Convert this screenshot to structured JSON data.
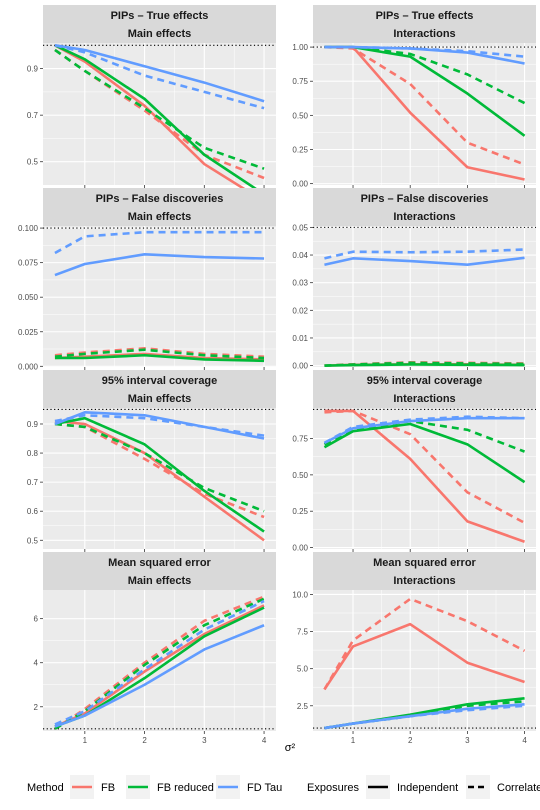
{
  "figure": {
    "xlabel": "σ²",
    "legend": {
      "method_title": "Method",
      "methods": [
        {
          "name": "FB",
          "color": "#F8766D"
        },
        {
          "name": "FB reduced",
          "color": "#00BA38"
        },
        {
          "name": "FD Tau",
          "color": "#619CFF"
        }
      ],
      "exposures_title": "Exposures",
      "exposures": [
        {
          "name": "Independent",
          "linetype": "solid"
        },
        {
          "name": "Correlated",
          "linetype": "dashed"
        }
      ]
    }
  },
  "chart_data": [
    {
      "type": "line",
      "title": "PIPs – True effects",
      "subtitle": "Main effects",
      "x": [
        0.5,
        1,
        2,
        3,
        4
      ],
      "xlim": [
        0.3,
        4.2
      ],
      "xticks": [
        1,
        2,
        3,
        4
      ],
      "ylim": [
        0.4,
        1.01
      ],
      "yticks": [
        0.5,
        0.7,
        0.9
      ],
      "ytick_labels": [
        "0.5",
        "0.7",
        "0.9"
      ],
      "hline": 1.0,
      "series": [
        {
          "method": "FB",
          "exposures": "Independent",
          "values": [
            1.0,
            0.93,
            0.74,
            0.49,
            0.33
          ]
        },
        {
          "method": "FB",
          "exposures": "Correlated",
          "values": [
            0.98,
            0.89,
            0.72,
            0.53,
            0.43
          ]
        },
        {
          "method": "FB reduced",
          "exposures": "Independent",
          "values": [
            1.0,
            0.94,
            0.77,
            0.53,
            0.36
          ]
        },
        {
          "method": "FB reduced",
          "exposures": "Correlated",
          "values": [
            0.98,
            0.89,
            0.73,
            0.56,
            0.47
          ]
        },
        {
          "method": "FD Tau",
          "exposures": "Independent",
          "values": [
            1.0,
            0.98,
            0.91,
            0.84,
            0.76
          ]
        },
        {
          "method": "FD Tau",
          "exposures": "Correlated",
          "values": [
            1.0,
            0.97,
            0.87,
            0.8,
            0.73
          ]
        }
      ]
    },
    {
      "type": "line",
      "title": "PIPs – True effects",
      "subtitle": "Interactions",
      "x": [
        0.5,
        1,
        2,
        3,
        4
      ],
      "xlim": [
        0.3,
        4.2
      ],
      "xticks": [
        1,
        2,
        3,
        4
      ],
      "ylim": [
        -0.01,
        1.03
      ],
      "yticks": [
        0.0,
        0.25,
        0.5,
        0.75,
        1.0
      ],
      "ytick_labels": [
        "0.00",
        "0.25",
        "0.50",
        "0.75",
        "1.00"
      ],
      "hline": 1.0,
      "series": [
        {
          "method": "FB",
          "exposures": "Independent",
          "values": [
            1.0,
            1.0,
            0.52,
            0.12,
            0.03
          ]
        },
        {
          "method": "FB",
          "exposures": "Correlated",
          "values": [
            1.0,
            0.99,
            0.73,
            0.3,
            0.14
          ]
        },
        {
          "method": "FB reduced",
          "exposures": "Independent",
          "values": [
            1.0,
            1.0,
            0.93,
            0.66,
            0.35
          ]
        },
        {
          "method": "FB reduced",
          "exposures": "Correlated",
          "values": [
            1.0,
            1.0,
            0.95,
            0.8,
            0.59
          ]
        },
        {
          "method": "FD Tau",
          "exposures": "Independent",
          "values": [
            1.0,
            1.0,
            0.99,
            0.96,
            0.88
          ]
        },
        {
          "method": "FD Tau",
          "exposures": "Correlated",
          "values": [
            1.0,
            1.0,
            0.99,
            0.97,
            0.93
          ]
        }
      ]
    },
    {
      "type": "line",
      "title": "PIPs – False discoveries",
      "subtitle": "Main effects",
      "x": [
        0.5,
        1,
        2,
        3,
        4
      ],
      "xlim": [
        0.3,
        4.2
      ],
      "xticks": [
        1,
        2,
        3,
        4
      ],
      "ylim": [
        -0.0005,
        0.1015
      ],
      "yticks": [
        0.0,
        0.025,
        0.05,
        0.075,
        0.1
      ],
      "ytick_labels": [
        "0.000",
        "0.025",
        "0.050",
        "0.075",
        "0.100"
      ],
      "hline": 0.1,
      "series": [
        {
          "method": "FB",
          "exposures": "Independent",
          "values": [
            0.006,
            0.007,
            0.009,
            0.006,
            0.005
          ]
        },
        {
          "method": "FB",
          "exposures": "Correlated",
          "values": [
            0.008,
            0.01,
            0.013,
            0.009,
            0.007
          ]
        },
        {
          "method": "FB reduced",
          "exposures": "Independent",
          "values": [
            0.006,
            0.006,
            0.008,
            0.005,
            0.004
          ]
        },
        {
          "method": "FB reduced",
          "exposures": "Correlated",
          "values": [
            0.007,
            0.009,
            0.012,
            0.008,
            0.006
          ]
        },
        {
          "method": "FD Tau",
          "exposures": "Independent",
          "values": [
            0.066,
            0.074,
            0.081,
            0.079,
            0.078
          ]
        },
        {
          "method": "FD Tau",
          "exposures": "Correlated",
          "values": [
            0.082,
            0.094,
            0.097,
            0.097,
            0.097
          ]
        }
      ]
    },
    {
      "type": "line",
      "title": "PIPs – False discoveries",
      "subtitle": "Interactions",
      "x": [
        0.5,
        1,
        2,
        3,
        4
      ],
      "xlim": [
        0.3,
        4.2
      ],
      "xticks": [
        1,
        2,
        3,
        4
      ],
      "ylim": [
        -0.0005,
        0.0505
      ],
      "yticks": [
        0.0,
        0.01,
        0.02,
        0.03,
        0.04,
        0.05
      ],
      "ytick_labels": [
        "0.00",
        "0.01",
        "0.02",
        "0.03",
        "0.04",
        "0.05"
      ],
      "hline": 0.05,
      "series": [
        {
          "method": "FB",
          "exposures": "Independent",
          "values": [
            0.0,
            0.0003,
            0.0005,
            0.0005,
            0.0003
          ]
        },
        {
          "method": "FB",
          "exposures": "Correlated",
          "values": [
            0.0,
            0.0005,
            0.0012,
            0.001,
            0.0008
          ]
        },
        {
          "method": "FB reduced",
          "exposures": "Independent",
          "values": [
            0.0,
            0.0002,
            0.0004,
            0.0003,
            0.0002
          ]
        },
        {
          "method": "FB reduced",
          "exposures": "Correlated",
          "values": [
            0.0,
            0.0004,
            0.001,
            0.0008,
            0.0006
          ]
        },
        {
          "method": "FD Tau",
          "exposures": "Independent",
          "values": [
            0.0365,
            0.0388,
            0.0378,
            0.0365,
            0.039
          ]
        },
        {
          "method": "FD Tau",
          "exposures": "Correlated",
          "values": [
            0.0388,
            0.0412,
            0.041,
            0.0412,
            0.042
          ]
        }
      ]
    },
    {
      "type": "line",
      "title": "95% interval coverage",
      "subtitle": "Main effects",
      "x": [
        0.5,
        1,
        2,
        3,
        4
      ],
      "xlim": [
        0.3,
        4.2
      ],
      "xticks": [
        1,
        2,
        3,
        4
      ],
      "ylim": [
        0.47,
        0.955
      ],
      "yticks": [
        0.5,
        0.6,
        0.7,
        0.8,
        0.9
      ],
      "ytick_labels": [
        "0.5",
        "0.6",
        "0.7",
        "0.8",
        "0.9"
      ],
      "hline": 0.95,
      "series": [
        {
          "method": "FB",
          "exposures": "Independent",
          "values": [
            0.91,
            0.9,
            0.8,
            0.65,
            0.5
          ]
        },
        {
          "method": "FB",
          "exposures": "Correlated",
          "values": [
            0.9,
            0.89,
            0.78,
            0.66,
            0.58
          ]
        },
        {
          "method": "FB reduced",
          "exposures": "Independent",
          "values": [
            0.9,
            0.92,
            0.83,
            0.67,
            0.53
          ]
        },
        {
          "method": "FB reduced",
          "exposures": "Correlated",
          "values": [
            0.9,
            0.89,
            0.8,
            0.68,
            0.6
          ]
        },
        {
          "method": "FD Tau",
          "exposures": "Independent",
          "values": [
            0.9,
            0.94,
            0.93,
            0.89,
            0.85
          ]
        },
        {
          "method": "FD Tau",
          "exposures": "Correlated",
          "values": [
            0.91,
            0.93,
            0.92,
            0.89,
            0.86
          ]
        }
      ]
    },
    {
      "type": "line",
      "title": "95% interval coverage",
      "subtitle": "Interactions",
      "x": [
        0.5,
        1,
        2,
        3,
        4
      ],
      "xlim": [
        0.3,
        4.2
      ],
      "xticks": [
        1,
        2,
        3,
        4
      ],
      "ylim": [
        -0.01,
        0.96
      ],
      "yticks": [
        0.0,
        0.25,
        0.5,
        0.75
      ],
      "ytick_labels": [
        "0.00",
        "0.25",
        "0.50",
        "0.75"
      ],
      "hline": 0.95,
      "series": [
        {
          "method": "FB",
          "exposures": "Independent",
          "values": [
            0.94,
            0.94,
            0.61,
            0.18,
            0.04
          ]
        },
        {
          "method": "FB",
          "exposures": "Correlated",
          "values": [
            0.93,
            0.94,
            0.78,
            0.38,
            0.17
          ]
        },
        {
          "method": "FB reduced",
          "exposures": "Independent",
          "values": [
            0.69,
            0.8,
            0.85,
            0.71,
            0.45
          ]
        },
        {
          "method": "FB reduced",
          "exposures": "Correlated",
          "values": [
            0.71,
            0.81,
            0.87,
            0.81,
            0.66
          ]
        },
        {
          "method": "FD Tau",
          "exposures": "Independent",
          "values": [
            0.72,
            0.82,
            0.87,
            0.89,
            0.89
          ]
        },
        {
          "method": "FD Tau",
          "exposures": "Correlated",
          "values": [
            0.72,
            0.83,
            0.88,
            0.9,
            0.89
          ]
        }
      ]
    },
    {
      "type": "line",
      "title": "Mean squared error",
      "subtitle": "Main effects",
      "x": [
        0.5,
        1,
        2,
        3,
        4
      ],
      "xlim": [
        0.3,
        4.2
      ],
      "xticks": [
        1,
        2,
        3,
        4
      ],
      "ylim": [
        0.9,
        7.3
      ],
      "yticks": [
        2,
        4,
        6
      ],
      "ytick_labels": [
        "2",
        "4",
        "6"
      ],
      "hline": 1.0,
      "series": [
        {
          "method": "FB",
          "exposures": "Independent",
          "values": [
            1.1,
            1.7,
            3.6,
            5.3,
            6.6
          ]
        },
        {
          "method": "FB",
          "exposures": "Correlated",
          "values": [
            1.0,
            1.9,
            4.0,
            5.9,
            7.0
          ]
        },
        {
          "method": "FB reduced",
          "exposures": "Independent",
          "values": [
            1.1,
            1.6,
            3.3,
            5.2,
            6.5
          ]
        },
        {
          "method": "FB reduced",
          "exposures": "Correlated",
          "values": [
            1.0,
            1.8,
            3.9,
            5.7,
            6.9
          ]
        },
        {
          "method": "FD Tau",
          "exposures": "Independent",
          "values": [
            1.1,
            1.6,
            3.0,
            4.6,
            5.7
          ]
        },
        {
          "method": "FD Tau",
          "exposures": "Correlated",
          "values": [
            1.2,
            1.8,
            3.7,
            5.5,
            6.8
          ]
        }
      ]
    },
    {
      "type": "line",
      "title": "Mean squared error",
      "subtitle": "Interactions",
      "x": [
        0.5,
        1,
        2,
        3,
        4
      ],
      "xlim": [
        0.3,
        4.2
      ],
      "xticks": [
        1,
        2,
        3,
        4
      ],
      "ylim": [
        0.8,
        10.3
      ],
      "yticks": [
        2.5,
        5.0,
        7.5,
        10.0
      ],
      "ytick_labels": [
        "2.5",
        "5.0",
        "7.5",
        "10.0"
      ],
      "hline": 1.0,
      "series": [
        {
          "method": "FB",
          "exposures": "Independent",
          "values": [
            3.6,
            6.5,
            8.0,
            5.4,
            4.1
          ]
        },
        {
          "method": "FB",
          "exposures": "Correlated",
          "values": [
            3.6,
            6.9,
            9.7,
            8.2,
            6.2
          ]
        },
        {
          "method": "FB reduced",
          "exposures": "Independent",
          "values": [
            1.0,
            1.3,
            1.9,
            2.6,
            3.0
          ]
        },
        {
          "method": "FB reduced",
          "exposures": "Correlated",
          "values": [
            1.0,
            1.3,
            1.8,
            2.5,
            2.8
          ]
        },
        {
          "method": "FD Tau",
          "exposures": "Independent",
          "values": [
            1.0,
            1.3,
            1.8,
            2.3,
            2.6
          ]
        },
        {
          "method": "FD Tau",
          "exposures": "Correlated",
          "values": [
            1.0,
            1.3,
            1.8,
            2.2,
            2.5
          ]
        }
      ]
    }
  ]
}
